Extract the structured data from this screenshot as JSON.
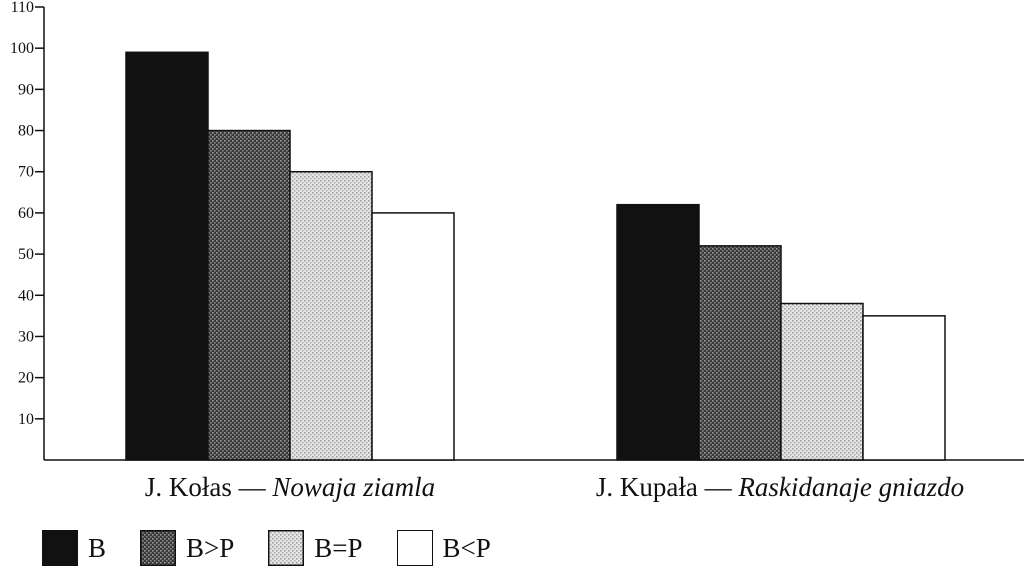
{
  "chart_data": {
    "type": "bar",
    "categories": [
      {
        "author": "J. Kołas — ",
        "title": "Nowaja ziamla"
      },
      {
        "author": "J. Kupała — ",
        "title": "Raskidanaje gniazdo"
      }
    ],
    "series": [
      {
        "name": "B",
        "values": [
          99,
          62
        ],
        "color": "#111111",
        "pattern": "solid"
      },
      {
        "name": "B>P",
        "values": [
          80,
          52
        ],
        "color": "#4a4a4a",
        "pattern": "dark-stipple"
      },
      {
        "name": "B=P",
        "values": [
          70,
          38
        ],
        "color": "#cfcfcf",
        "pattern": "light-stipple"
      },
      {
        "name": "B<P",
        "values": [
          60,
          35
        ],
        "color": "#ffffff",
        "pattern": "white"
      }
    ],
    "y_ticks": [
      10,
      20,
      30,
      40,
      50,
      60,
      70,
      80,
      90,
      100,
      110
    ],
    "ylim": [
      0,
      110
    ],
    "legend_position": "bottom-left",
    "grid": false,
    "title": "",
    "xlabel": "",
    "ylabel": ""
  }
}
